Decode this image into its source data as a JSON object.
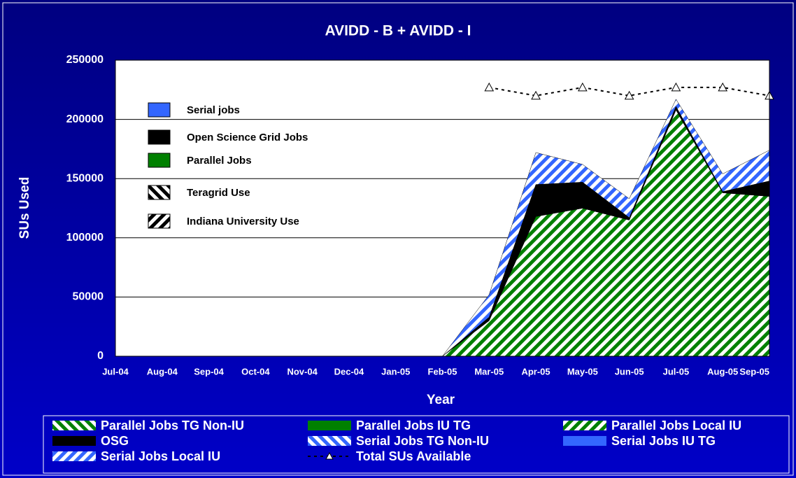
{
  "chart_data": {
    "type": "stacked_area",
    "title": "AVIDD - B + AVIDD - I",
    "x_label": "Year",
    "y_label": "SUs Used",
    "categories": [
      "Jul-04",
      "Aug-04",
      "Sep-04",
      "Oct-04",
      "Nov-04",
      "Dec-04",
      "Jan-05",
      "Feb-05",
      "Mar-05",
      "Apr-05",
      "May-05",
      "Jun-05",
      "Jul-05",
      "Aug-05",
      "Sep-05"
    ],
    "ylim": [
      0,
      250000
    ],
    "yticks": [
      0,
      50000,
      100000,
      150000,
      200000,
      250000
    ],
    "grid": true,
    "series": [
      {
        "name": "Parallel Jobs TG Non-IU",
        "color": "#008000",
        "pattern": "back",
        "values": [
          0,
          0,
          0,
          0,
          0,
          0,
          0,
          0,
          0,
          0,
          0,
          0,
          0,
          0,
          0
        ]
      },
      {
        "name": "Parallel Jobs IU TG",
        "color": "#008000",
        "pattern": "solid",
        "values": [
          0,
          0,
          0,
          0,
          0,
          0,
          0,
          0,
          0,
          0,
          0,
          0,
          0,
          0,
          0
        ]
      },
      {
        "name": "Parallel Jobs Local IU",
        "color": "#008000",
        "pattern": "fwd",
        "values": [
          0,
          0,
          0,
          0,
          0,
          0,
          0,
          0,
          30000,
          118000,
          125000,
          115000,
          208000,
          138000,
          135000
        ]
      },
      {
        "name": "OSG",
        "color": "#000000",
        "pattern": "solid",
        "values": [
          0,
          0,
          0,
          0,
          0,
          0,
          0,
          0,
          3000,
          27000,
          22000,
          2000,
          3000,
          1000,
          13000
        ]
      },
      {
        "name": "Serial Jobs TG Non-IU",
        "color": "#3366ff",
        "pattern": "back",
        "values": [
          0,
          0,
          0,
          0,
          0,
          0,
          0,
          0,
          0,
          0,
          0,
          0,
          0,
          0,
          0
        ]
      },
      {
        "name": "Serial Jobs IU TG",
        "color": "#3366ff",
        "pattern": "solid",
        "values": [
          0,
          0,
          0,
          0,
          0,
          0,
          0,
          0,
          0,
          0,
          0,
          0,
          0,
          0,
          0
        ]
      },
      {
        "name": "Serial Jobs Local IU",
        "color": "#3366ff",
        "pattern": "fwd",
        "values": [
          0,
          0,
          0,
          0,
          0,
          0,
          0,
          0,
          19000,
          27000,
          15000,
          16000,
          6000,
          15000,
          26000
        ]
      },
      {
        "name": "Total SUs Available",
        "color": "#000000",
        "kind": "line",
        "values": [
          null,
          null,
          null,
          null,
          null,
          null,
          null,
          null,
          227000,
          220000,
          227000,
          220000,
          227000,
          227000,
          220000
        ]
      }
    ],
    "key": [
      {
        "label": "Serial jobs",
        "color": "#3366ff",
        "pattern": "solid"
      },
      {
        "label": "Open Science Grid Jobs",
        "color": "#000000",
        "pattern": "solid"
      },
      {
        "label": "Parallel Jobs",
        "color": "#008000",
        "pattern": "solid"
      },
      {
        "label": "Teragrid Use",
        "color": "#000000",
        "pattern": "back"
      },
      {
        "label": "Indiana University Use",
        "color": "#000000",
        "pattern": "fwd"
      }
    ]
  }
}
